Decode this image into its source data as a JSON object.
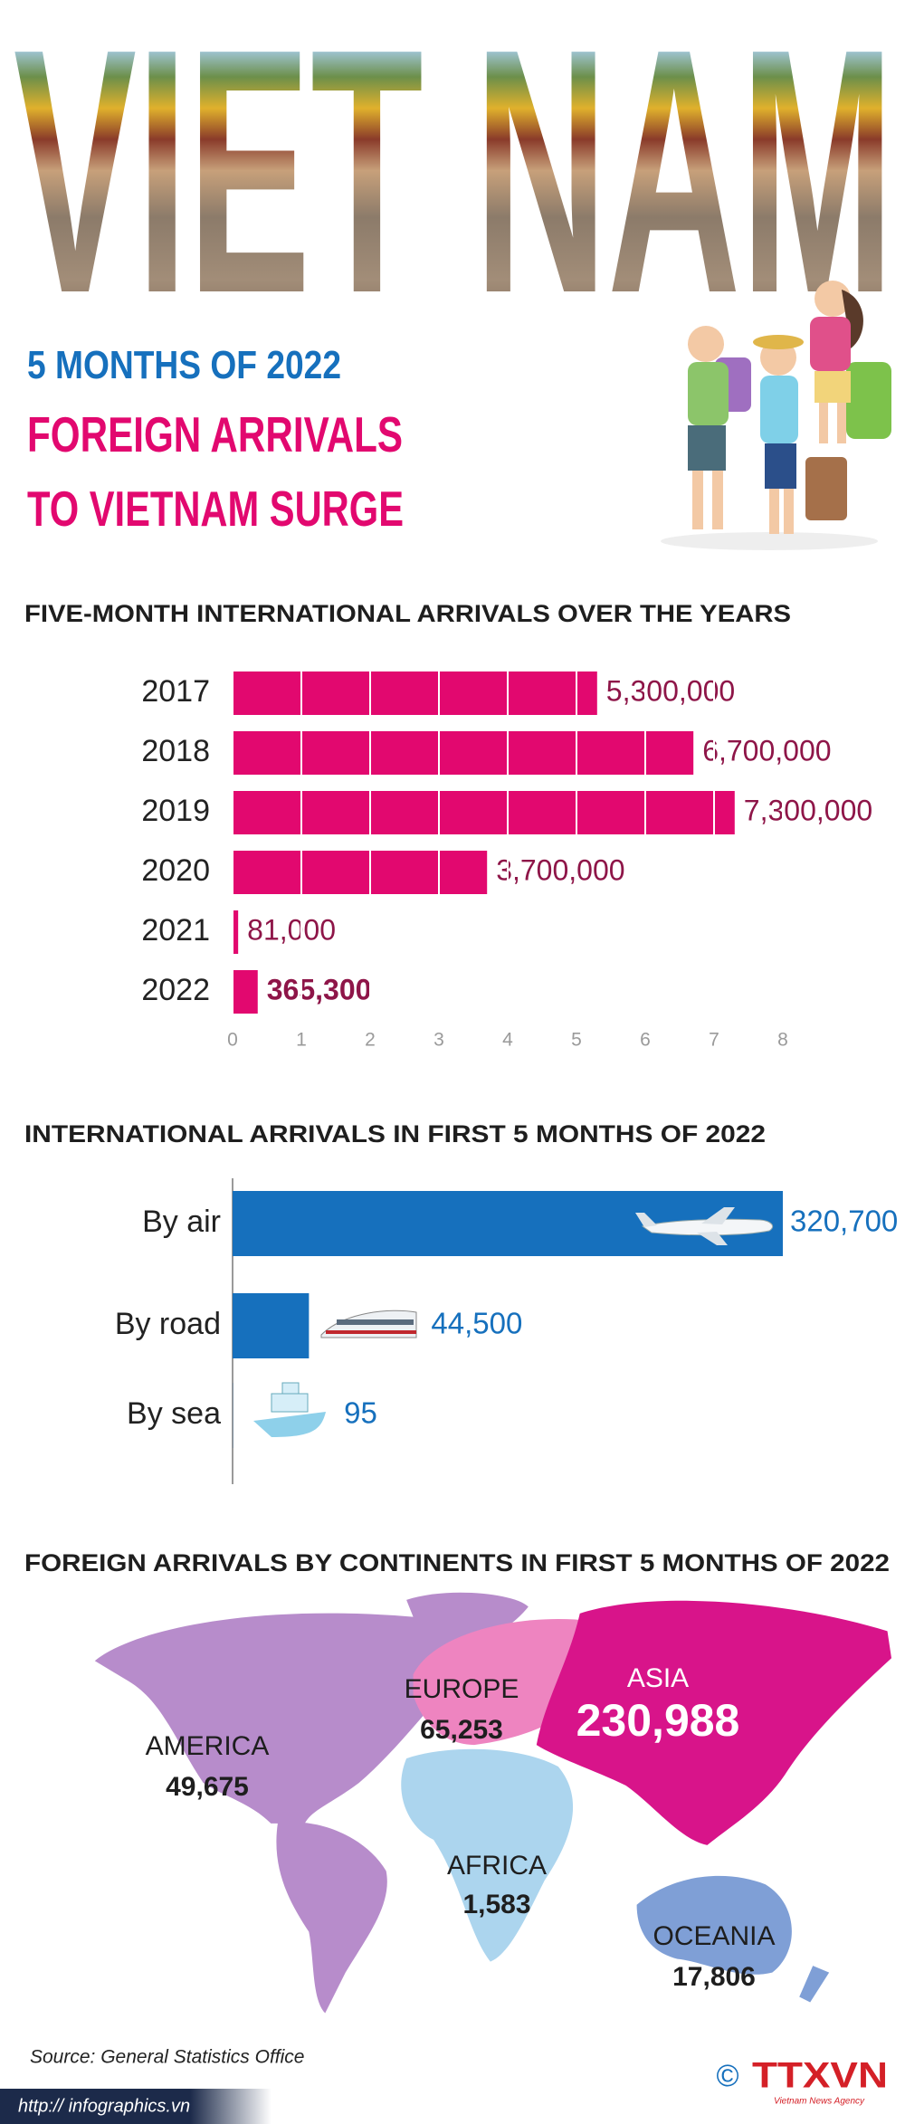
{
  "header": {
    "banner": "VIET NAM",
    "kicker": "5 MONTHS OF 2022",
    "title_lines": [
      "FOREIGN ARRIVALS",
      "TO VIETNAM SURGE"
    ]
  },
  "chart_data": [
    {
      "type": "bar",
      "orientation": "horizontal",
      "title": "FIVE-MONTH INTERNATIONAL ARRIVALS OVER THE YEARS",
      "categories": [
        "2017",
        "2018",
        "2019",
        "2020",
        "2021",
        "2022"
      ],
      "values": [
        5.3,
        6.7,
        7.3,
        3.7,
        0.081,
        0.3653
      ],
      "value_labels": [
        "5,300,000",
        "6,700,000",
        "7,300,000",
        "3,700,000",
        "81,000",
        "365,300"
      ],
      "color": "#e2086f",
      "label_color": "#8e1548",
      "xlim": [
        0,
        8
      ],
      "xticks": [
        0,
        1,
        2,
        3,
        4,
        5,
        6,
        7,
        8
      ],
      "grid": true
    },
    {
      "type": "bar",
      "orientation": "horizontal",
      "title": "INTERNATIONAL ARRIVALS IN FIRST 5 MONTHS OF 2022",
      "categories": [
        "By air",
        "By road",
        "By sea"
      ],
      "values": [
        320700,
        44500,
        95
      ],
      "value_labels": [
        "320,700",
        "44,500",
        "95"
      ],
      "color": "#1670bd",
      "label_color": "#1670bd"
    },
    {
      "type": "map",
      "title": "FOREIGN ARRIVALS BY CONTINENTS IN FIRST 5 MONTHS OF 2022",
      "categories": [
        "AMERICA",
        "EUROPE",
        "ASIA",
        "AFRICA",
        "OCEANIA"
      ],
      "values": [
        49675,
        65253,
        230988,
        1583,
        17806
      ],
      "value_labels": [
        "49,675",
        "65,253",
        "230,988",
        "1,583",
        "17,806"
      ],
      "colors": [
        "#b78ccb",
        "#ee84c0",
        "#d8148a",
        "#acd5ee",
        "#7f9fd6"
      ]
    }
  ],
  "footer": {
    "source": "Source: General Statistics Office",
    "url": "http:// infographics.vn",
    "copyright": "©",
    "logo": "TTXVN",
    "agency": "Vietnam News Agency"
  }
}
